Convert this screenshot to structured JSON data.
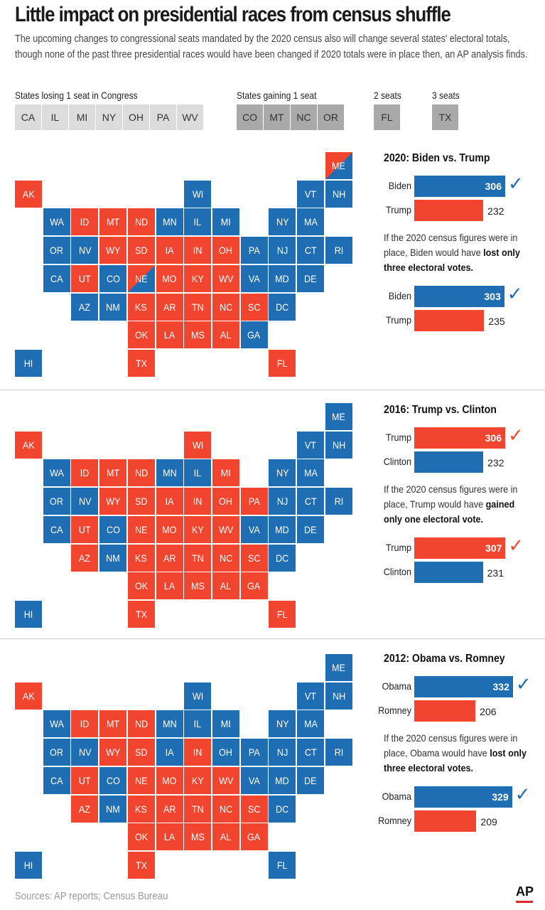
{
  "header": {
    "title": "Little impact on presidential races from census shuffle",
    "subtitle_lines": [
      "The upcoming changes to congressional seats mandated by the 2020 census also will change several states' electoral totals,",
      "though none of the past three presidential races would have been changed if 2020 totals were in place then, an AP analysis finds."
    ]
  },
  "legend": {
    "losing": {
      "label": "States losing 1 seat in Congress",
      "states": [
        "CA",
        "IL",
        "MI",
        "NY",
        "OH",
        "PA",
        "WV"
      ]
    },
    "gaining": {
      "label": "States gaining 1 seat",
      "states": [
        "CO",
        "MT",
        "NC",
        "OR"
      ]
    },
    "two": {
      "label": "2 seats",
      "states": [
        "FL"
      ]
    },
    "three": {
      "label": "3 seats",
      "states": [
        "TX"
      ]
    }
  },
  "colors": {
    "democrat": "#1f6db2",
    "republican": "#f2452f",
    "losing_box": "#dcdcdc",
    "gaining_box": "#a9a9a9"
  },
  "chart_data": [
    {
      "type": "bar",
      "title": "2020: Biden vs. Trump",
      "actual": [
        {
          "name": "Biden",
          "party": "D",
          "value": 306,
          "winner": true
        },
        {
          "name": "Trump",
          "party": "R",
          "value": 232
        }
      ],
      "note_pre": "If the 2020 census figures were in place, Biden would have ",
      "note_bold": "lost only three electoral votes.",
      "with_2020_census": [
        {
          "name": "Biden",
          "party": "D",
          "value": 303,
          "winner": true
        },
        {
          "name": "Trump",
          "party": "R",
          "value": 235
        }
      ],
      "map_winners": {
        "R": [
          "AK",
          "ID",
          "MT",
          "ND",
          "WY",
          "SD",
          "IA",
          "IN",
          "OH",
          "UT",
          "MO",
          "KY",
          "WV",
          "KS",
          "AR",
          "TN",
          "NC",
          "SC",
          "OK",
          "LA",
          "MS",
          "AL",
          "TX",
          "FL"
        ],
        "split_R_B": [
          "ME",
          "NE"
        ]
      }
    },
    {
      "type": "bar",
      "title": "2016: Trump vs. Clinton",
      "actual": [
        {
          "name": "Trump",
          "party": "R",
          "value": 306,
          "winner": true
        },
        {
          "name": "Clinton",
          "party": "D",
          "value": 232
        }
      ],
      "note_pre": "If the 2020 census figures were in place, Trump would have ",
      "note_bold": "gained only one electoral vote.",
      "with_2020_census": [
        {
          "name": "Trump",
          "party": "R",
          "value": 307,
          "winner": true
        },
        {
          "name": "Clinton",
          "party": "D",
          "value": 231
        }
      ],
      "map_winners": {
        "R": [
          "AK",
          "WI",
          "ID",
          "MT",
          "ND",
          "MI",
          "WY",
          "SD",
          "IA",
          "IN",
          "OH",
          "PA",
          "UT",
          "NE",
          "MO",
          "KY",
          "WV",
          "AZ",
          "KS",
          "AR",
          "TN",
          "NC",
          "SC",
          "OK",
          "LA",
          "MS",
          "AL",
          "GA",
          "TX",
          "FL"
        ],
        "split_R_B": []
      }
    },
    {
      "type": "bar",
      "title": "2012: Obama vs. Romney",
      "actual": [
        {
          "name": "Obama",
          "party": "D",
          "value": 332,
          "winner": true
        },
        {
          "name": "Romney",
          "party": "R",
          "value": 206
        }
      ],
      "note_pre": "If the 2020 census figures were in place, Obama would have ",
      "note_bold": "lost only three electoral votes.",
      "with_2020_census": [
        {
          "name": "Obama",
          "party": "D",
          "value": 329,
          "winner": true
        },
        {
          "name": "Romney",
          "party": "R",
          "value": 209
        }
      ],
      "map_winners": {
        "R": [
          "AK",
          "ID",
          "MT",
          "ND",
          "WY",
          "SD",
          "IN",
          "UT",
          "NE",
          "MO",
          "KY",
          "WV",
          "AZ",
          "KS",
          "AR",
          "TN",
          "NC",
          "SC",
          "OK",
          "LA",
          "MS",
          "AL",
          "GA",
          "TX"
        ],
        "split_R_B": []
      }
    }
  ],
  "footer": {
    "source": "Sources: AP reports; Census Bureau",
    "logo": "AP"
  }
}
